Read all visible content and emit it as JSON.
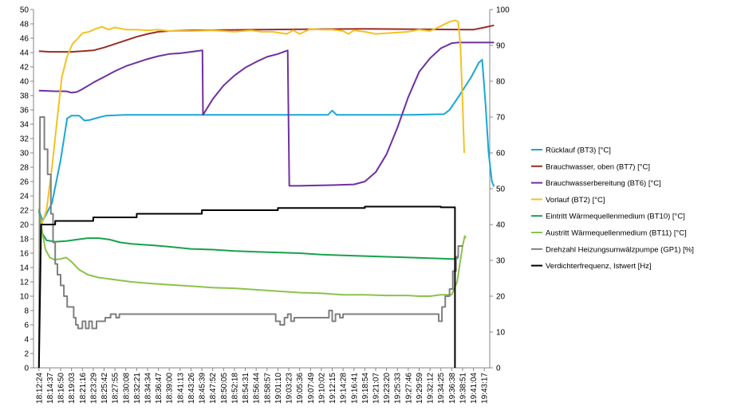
{
  "chart_data": {
    "type": "line",
    "title": "",
    "xlabel": "",
    "ylabel": "",
    "y_left": {
      "min": 0,
      "max": 50,
      "step": 2
    },
    "y_right": {
      "min": 0,
      "max": 100,
      "step": 10
    },
    "grid": false,
    "legend_position": "right",
    "categories": [
      "18:12:24",
      "18:14:37",
      "18:16:50",
      "18:19:03",
      "18:21:16",
      "18:23:29",
      "18:25:42",
      "18:27:55",
      "18:30:08",
      "18:32:21",
      "18:34:34",
      "18:36:47",
      "18:39:00",
      "18:41:13",
      "18:43:26",
      "18:45:39",
      "18:47:52",
      "18:50:05",
      "18:52:18",
      "18:54:31",
      "18:56:44",
      "18:58:57",
      "19:01:10",
      "19:03:23",
      "19:05:36",
      "19:07:49",
      "19:10:02",
      "19:12:15",
      "19:14:28",
      "19:16:41",
      "19:18:54",
      "19:21:07",
      "19:23:20",
      "19:25:33",
      "19:27:46",
      "19:29:59",
      "19:32:12",
      "19:34:25",
      "19:36:38",
      "19:38:51",
      "19:41:04",
      "19:43:17"
    ],
    "series": [
      {
        "name": "Rücklauf (BT3) [°C]",
        "color": "#1aa7d9",
        "axis": "left",
        "points": [
          [
            0,
            22
          ],
          [
            0.35,
            20.5
          ],
          [
            1.2,
            23
          ],
          [
            2,
            29
          ],
          [
            2.6,
            34.8
          ],
          [
            3,
            35.2
          ],
          [
            3.7,
            35.2
          ],
          [
            4.2,
            34.5
          ],
          [
            4.7,
            34.6
          ],
          [
            5.4,
            34.9
          ],
          [
            6.2,
            35.2
          ],
          [
            8,
            35.3
          ],
          [
            12,
            35.3
          ],
          [
            16,
            35.3
          ],
          [
            21,
            35.3
          ],
          [
            24,
            35.3
          ],
          [
            26.6,
            35.3
          ],
          [
            27,
            35.9
          ],
          [
            27.4,
            35.3
          ],
          [
            30,
            35.3
          ],
          [
            34,
            35.3
          ],
          [
            37.3,
            35.4
          ],
          [
            37.8,
            36
          ],
          [
            38.7,
            38
          ],
          [
            39.8,
            40.6
          ],
          [
            40.5,
            42.6
          ],
          [
            40.8,
            43
          ],
          [
            41.1,
            37
          ],
          [
            41.4,
            30
          ],
          [
            41.7,
            26
          ],
          [
            41.9,
            25.3
          ]
        ]
      },
      {
        "name": "Brauchwasser, oben (BT7) [°C]",
        "color": "#9b2d23",
        "axis": "left",
        "points": [
          [
            0,
            44.2
          ],
          [
            1,
            44.1
          ],
          [
            3,
            44.1
          ],
          [
            4,
            44.2
          ],
          [
            5,
            44.3
          ],
          [
            6,
            44.7
          ],
          [
            7,
            45.2
          ],
          [
            8,
            45.7
          ],
          [
            9,
            46.2
          ],
          [
            10,
            46.6
          ],
          [
            11,
            46.9
          ],
          [
            12,
            47
          ],
          [
            14,
            47.1
          ],
          [
            20,
            47.2
          ],
          [
            30,
            47.3
          ],
          [
            40,
            47.2
          ],
          [
            41,
            47.5
          ],
          [
            41.9,
            47.8
          ]
        ]
      },
      {
        "name": "Brauchwasserbereitung (BT6) [°C]",
        "color": "#7030a0",
        "axis": "left",
        "points": [
          [
            0,
            38.7
          ],
          [
            1.5,
            38.6
          ],
          [
            2.5,
            38.6
          ],
          [
            3,
            38.4
          ],
          [
            3.5,
            38.5
          ],
          [
            4,
            38.9
          ],
          [
            5,
            39.8
          ],
          [
            6,
            40.6
          ],
          [
            7,
            41.4
          ],
          [
            8,
            42.1
          ],
          [
            9,
            42.6
          ],
          [
            10,
            43.1
          ],
          [
            11,
            43.5
          ],
          [
            12,
            43.8
          ],
          [
            13,
            43.9
          ],
          [
            14,
            44.1
          ],
          [
            15.05,
            44.3
          ],
          [
            15.1,
            35.3
          ],
          [
            16,
            37.5
          ],
          [
            17,
            39.4
          ],
          [
            18,
            40.8
          ],
          [
            19,
            41.9
          ],
          [
            20,
            42.7
          ],
          [
            21,
            43.4
          ],
          [
            22,
            43.8
          ],
          [
            22.9,
            44.3
          ],
          [
            23.05,
            25.4
          ],
          [
            24,
            25.4
          ],
          [
            27,
            25.5
          ],
          [
            29,
            25.6
          ],
          [
            30,
            26
          ],
          [
            31,
            27.3
          ],
          [
            32,
            29.8
          ],
          [
            33,
            33.5
          ],
          [
            34,
            37.8
          ],
          [
            35,
            41.3
          ],
          [
            36,
            43.2
          ],
          [
            37,
            44.6
          ],
          [
            38,
            45.3
          ],
          [
            38.6,
            45.4
          ],
          [
            41.9,
            45.4
          ]
        ]
      },
      {
        "name": "Vorlauf (BT2) [°C]",
        "color": "#f4c123",
        "axis": "left",
        "points": [
          [
            0,
            20.5
          ],
          [
            0.3,
            20.2
          ],
          [
            0.7,
            22
          ],
          [
            1.2,
            28
          ],
          [
            1.7,
            35
          ],
          [
            2.1,
            40.5
          ],
          [
            2.6,
            43.5
          ],
          [
            3.1,
            45.2
          ],
          [
            3.6,
            46
          ],
          [
            4,
            46.7
          ],
          [
            4.6,
            46.9
          ],
          [
            5.2,
            47.3
          ],
          [
            5.8,
            47.6
          ],
          [
            6.4,
            47.2
          ],
          [
            7,
            47.5
          ],
          [
            8,
            47.2
          ],
          [
            9,
            47.2
          ],
          [
            10,
            47.1
          ],
          [
            11,
            47.2
          ],
          [
            12,
            47
          ],
          [
            14,
            47
          ],
          [
            16,
            47.1
          ],
          [
            18,
            46.9
          ],
          [
            19.5,
            47.1
          ],
          [
            20.5,
            46.9
          ],
          [
            21.5,
            46.9
          ],
          [
            22.8,
            46.6
          ],
          [
            23.4,
            47.1
          ],
          [
            24,
            46.6
          ],
          [
            25,
            47.3
          ],
          [
            26,
            47.2
          ],
          [
            27,
            47.2
          ],
          [
            28,
            47
          ],
          [
            28.5,
            46.6
          ],
          [
            29,
            47.1
          ],
          [
            30,
            46.9
          ],
          [
            31,
            46.6
          ],
          [
            32,
            46.7
          ],
          [
            33,
            46.8
          ],
          [
            34,
            46.9
          ],
          [
            35,
            47.2
          ],
          [
            36,
            47
          ],
          [
            37,
            47.7
          ],
          [
            37.8,
            48.3
          ],
          [
            38.3,
            48.5
          ],
          [
            38.6,
            48.3
          ],
          [
            38.8,
            45
          ],
          [
            39,
            37
          ],
          [
            39.15,
            30
          ]
        ]
      },
      {
        "name": "Eintritt Wärmequellenmedium (BT10) [°C]",
        "color": "#17a24a",
        "axis": "left",
        "points": [
          [
            0,
            22
          ],
          [
            0.3,
            18.8
          ],
          [
            0.7,
            17.8
          ],
          [
            1.5,
            17.6
          ],
          [
            2.5,
            17.7
          ],
          [
            3.5,
            17.9
          ],
          [
            4.5,
            18.1
          ],
          [
            5.5,
            18.1
          ],
          [
            6.5,
            17.9
          ],
          [
            7.5,
            17.5
          ],
          [
            8.5,
            17.3
          ],
          [
            9.5,
            17.2
          ],
          [
            10.5,
            17.1
          ],
          [
            12,
            16.9
          ],
          [
            14,
            16.6
          ],
          [
            16,
            16.5
          ],
          [
            18,
            16.3
          ],
          [
            20,
            16.2
          ],
          [
            22,
            16.1
          ],
          [
            24,
            16
          ],
          [
            26,
            15.8
          ],
          [
            28,
            15.7
          ],
          [
            30,
            15.6
          ],
          [
            32,
            15.5
          ],
          [
            34,
            15.4
          ],
          [
            36,
            15.3
          ],
          [
            38,
            15.2
          ],
          [
            38.4,
            15.2
          ],
          [
            38.6,
            15.4
          ]
        ]
      },
      {
        "name": "Austritt Wärmequellenmedium (BT11) [°C]",
        "color": "#8bc34a",
        "axis": "left",
        "points": [
          [
            0,
            22.2
          ],
          [
            0.3,
            19
          ],
          [
            0.6,
            16.5
          ],
          [
            1,
            15.4
          ],
          [
            1.4,
            15.1
          ],
          [
            2,
            15.2
          ],
          [
            2.5,
            15.4
          ],
          [
            3,
            14.8
          ],
          [
            3.7,
            13.7
          ],
          [
            4.5,
            13
          ],
          [
            5.5,
            12.6
          ],
          [
            6.5,
            12.4
          ],
          [
            7.5,
            12.2
          ],
          [
            8.5,
            12
          ],
          [
            10,
            11.8
          ],
          [
            12,
            11.6
          ],
          [
            14,
            11.4
          ],
          [
            16,
            11.2
          ],
          [
            18,
            11.1
          ],
          [
            20,
            10.9
          ],
          [
            22,
            10.7
          ],
          [
            24,
            10.5
          ],
          [
            26,
            10.4
          ],
          [
            28,
            10.2
          ],
          [
            30,
            10.2
          ],
          [
            32,
            10.1
          ],
          [
            34,
            10.1
          ],
          [
            35,
            10
          ],
          [
            36,
            10
          ],
          [
            37,
            10.2
          ],
          [
            38,
            10.2
          ],
          [
            38.5,
            12
          ],
          [
            38.8,
            15
          ],
          [
            39,
            17
          ],
          [
            39.2,
            18.4
          ],
          [
            39.3,
            18.1
          ]
        ]
      },
      {
        "name": "Drehzahl Heizungsumwälzpumpe (GP1) [%]",
        "color": "#7f7f7f",
        "axis": "right",
        "step": true,
        "points": [
          [
            0,
            0
          ],
          [
            0.1,
            70
          ],
          [
            0.5,
            70
          ],
          [
            0.5,
            61
          ],
          [
            0.8,
            61
          ],
          [
            0.8,
            54
          ],
          [
            1.1,
            54
          ],
          [
            1.1,
            43
          ],
          [
            1.3,
            43
          ],
          [
            1.3,
            35
          ],
          [
            1.5,
            35
          ],
          [
            1.5,
            29
          ],
          [
            1.7,
            29
          ],
          [
            1.7,
            26
          ],
          [
            2,
            26
          ],
          [
            2,
            23
          ],
          [
            2.3,
            23
          ],
          [
            2.3,
            20
          ],
          [
            2.6,
            20
          ],
          [
            2.6,
            17
          ],
          [
            3.2,
            17
          ],
          [
            3.2,
            14
          ],
          [
            3.4,
            14
          ],
          [
            3.4,
            12
          ],
          [
            3.6,
            12
          ],
          [
            3.6,
            11
          ],
          [
            4,
            11
          ],
          [
            4,
            13
          ],
          [
            4.3,
            13
          ],
          [
            4.3,
            11
          ],
          [
            4.6,
            11
          ],
          [
            4.6,
            13
          ],
          [
            4.9,
            13
          ],
          [
            4.9,
            11
          ],
          [
            5.3,
            11
          ],
          [
            5.3,
            13
          ],
          [
            6.1,
            13
          ],
          [
            6.1,
            14
          ],
          [
            6.6,
            14
          ],
          [
            6.6,
            15
          ],
          [
            7.1,
            15
          ],
          [
            7.1,
            14
          ],
          [
            7.4,
            14
          ],
          [
            7.4,
            15
          ],
          [
            21.8,
            15
          ],
          [
            21.8,
            13
          ],
          [
            22.2,
            13
          ],
          [
            22.2,
            12
          ],
          [
            22.6,
            12
          ],
          [
            22.6,
            14
          ],
          [
            22.9,
            14
          ],
          [
            22.9,
            15
          ],
          [
            23.2,
            15
          ],
          [
            23.2,
            13
          ],
          [
            23.5,
            13
          ],
          [
            23.5,
            14
          ],
          [
            26.7,
            14
          ],
          [
            26.7,
            16
          ],
          [
            27,
            16
          ],
          [
            27,
            13
          ],
          [
            27.3,
            13
          ],
          [
            27.3,
            15
          ],
          [
            27.7,
            15
          ],
          [
            27.7,
            14
          ],
          [
            28,
            14
          ],
          [
            28,
            15
          ],
          [
            36.8,
            15
          ],
          [
            36.8,
            13
          ],
          [
            37.1,
            13
          ],
          [
            37.1,
            17
          ],
          [
            37.4,
            17
          ],
          [
            37.4,
            20
          ],
          [
            37.8,
            20
          ],
          [
            37.8,
            22
          ],
          [
            38.1,
            22
          ],
          [
            38.1,
            27
          ],
          [
            38.4,
            27
          ],
          [
            38.4,
            31
          ],
          [
            38.6,
            31
          ],
          [
            38.6,
            34
          ],
          [
            39,
            34
          ]
        ]
      },
      {
        "name": "Verdichterfrequenz, Istwert [Hz]",
        "color": "#000000",
        "axis": "left",
        "step": true,
        "points": [
          [
            0,
            0
          ],
          [
            0.2,
            20
          ],
          [
            1.5,
            20
          ],
          [
            1.5,
            20.5
          ],
          [
            5,
            20.5
          ],
          [
            5,
            21
          ],
          [
            9,
            21
          ],
          [
            9,
            21.5
          ],
          [
            15,
            21.5
          ],
          [
            15,
            22
          ],
          [
            22,
            22
          ],
          [
            22,
            22.3
          ],
          [
            30,
            22.3
          ],
          [
            30,
            22.5
          ],
          [
            37,
            22.5
          ],
          [
            37,
            22.4
          ],
          [
            38.3,
            22.4
          ],
          [
            38.3,
            0
          ]
        ]
      }
    ]
  }
}
